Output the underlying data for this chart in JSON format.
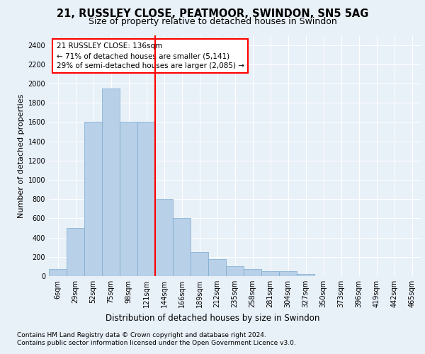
{
  "title1": "21, RUSSLEY CLOSE, PEATMOOR, SWINDON, SN5 5AG",
  "title2": "Size of property relative to detached houses in Swindon",
  "xlabel": "Distribution of detached houses by size in Swindon",
  "ylabel": "Number of detached properties",
  "categories": [
    "6sqm",
    "29sqm",
    "52sqm",
    "75sqm",
    "98sqm",
    "121sqm",
    "144sqm",
    "166sqm",
    "189sqm",
    "212sqm",
    "235sqm",
    "258sqm",
    "281sqm",
    "304sqm",
    "327sqm",
    "350sqm",
    "373sqm",
    "396sqm",
    "419sqm",
    "442sqm",
    "465sqm"
  ],
  "values": [
    75,
    500,
    1600,
    1950,
    1600,
    1600,
    800,
    600,
    250,
    175,
    100,
    75,
    50,
    50,
    25,
    0,
    0,
    0,
    0,
    0,
    0
  ],
  "bar_color": "#b8d0e8",
  "bar_edge_color": "#7aaad0",
  "ylim": [
    0,
    2500
  ],
  "yticks": [
    0,
    200,
    400,
    600,
    800,
    1000,
    1200,
    1400,
    1600,
    1800,
    2000,
    2200,
    2400
  ],
  "red_line_x": 5.5,
  "annotation_box_text": "21 RUSSLEY CLOSE: 136sqm\n← 71% of detached houses are smaller (5,141)\n29% of semi-detached houses are larger (2,085) →",
  "footer1": "Contains HM Land Registry data © Crown copyright and database right 2024.",
  "footer2": "Contains public sector information licensed under the Open Government Licence v3.0.",
  "bg_color": "#e8f0f8",
  "plot_bg_color": "#e8f0f8",
  "grid_color": "#ffffff",
  "title1_fontsize": 10.5,
  "title2_fontsize": 9,
  "xlabel_fontsize": 8.5,
  "ylabel_fontsize": 8,
  "tick_fontsize": 7,
  "annotation_fontsize": 7.5,
  "footer_fontsize": 6.5
}
